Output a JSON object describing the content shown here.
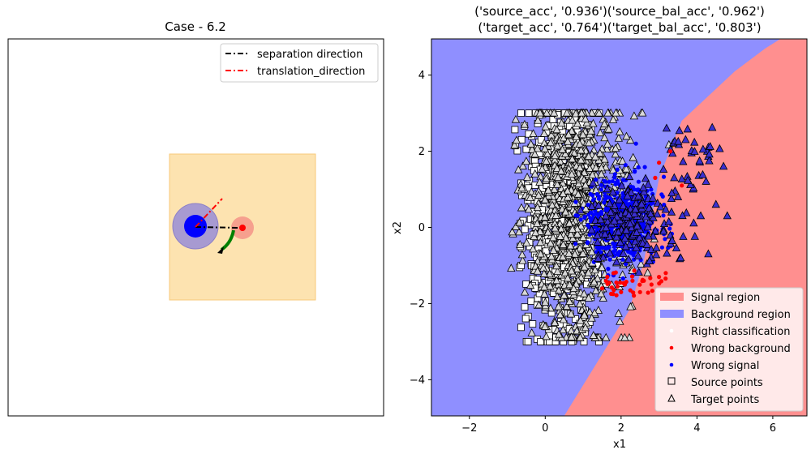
{
  "chart_data": [
    {
      "type": "diagram",
      "title": "Case - 6.2",
      "legend": {
        "placement": "top-right",
        "entries": [
          {
            "label": "separation direction",
            "color": "#000000",
            "style": "dash-dot"
          },
          {
            "label": "translation_direction",
            "color": "#ff0000",
            "style": "dash-dot"
          }
        ]
      },
      "colors": {
        "box_fill": "#fde3b0",
        "box_edge": "#f8c97a",
        "background_halo": "#a79ad1",
        "background_point": "#0000ff",
        "signal_halo": "#f6a08e",
        "signal_point": "#ff0000",
        "rotation_arrow": "#008000"
      }
    },
    {
      "type": "scatter",
      "title_line1": "('source_acc', '0.936')('source_bal_acc', '0.962')",
      "title_line2": "('target_acc', '0.764')('target_bal_acc', '0.803')",
      "xlabel": "x1",
      "ylabel": "x2",
      "xlim": [
        -3,
        6.9
      ],
      "ylim": [
        -4.95,
        4.95
      ],
      "xticks": [
        -2,
        0,
        2,
        4,
        6
      ],
      "yticks": [
        -4,
        -2,
        0,
        2,
        4
      ],
      "tick_labels_x": [
        "−2",
        "0",
        "2",
        "4",
        "6"
      ],
      "tick_labels_y": [
        "−4",
        "−2",
        "0",
        "2",
        "4"
      ],
      "decision_boundary": [
        [
          0.5,
          -4.95
        ],
        [
          2.2,
          -2.2
        ],
        [
          2.6,
          -0.9
        ],
        [
          3.0,
          1.3
        ],
        [
          3.6,
          2.8
        ],
        [
          5.0,
          4.1
        ],
        [
          5.8,
          4.7
        ],
        [
          6.2,
          4.95
        ]
      ],
      "regions": {
        "signal": "Signal region",
        "background": "Background region"
      },
      "colors": {
        "signal_region": "#ff8f8f",
        "background_region": "#8f8fff",
        "wrong_background": "#ff0000",
        "wrong_signal": "#0000ff",
        "marker_edge": "#000000",
        "target_marker_fill": "#d8d8d8"
      },
      "series": [
        {
          "name": "Source points",
          "marker": "square",
          "center": [
            0.4,
            0.3
          ],
          "spread": [
            0.9,
            1.6
          ],
          "x_range": [
            -1,
            1.6
          ],
          "y_range": [
            -3.0,
            3.0
          ]
        },
        {
          "name": "Target points",
          "marker": "triangle",
          "center": [
            0.8,
            0.3
          ],
          "spread": [
            1.0,
            1.5
          ],
          "x_range": [
            -1,
            3.3
          ],
          "y_range": [
            -2.9,
            3.0
          ]
        },
        {
          "name": "Wrong signal",
          "center": [
            2.0,
            0.2
          ],
          "spread": [
            0.45,
            0.55
          ],
          "extra_points": [
            [
              3.4,
              1.3
            ],
            [
              3.9,
              1.0
            ],
            [
              4.5,
              0.6
            ],
            [
              4.8,
              0.3
            ],
            [
              4.3,
              -0.7
            ],
            [
              3.7,
              2.3
            ],
            [
              4.3,
              2.1
            ],
            [
              4.7,
              1.6
            ],
            [
              3.2,
              2.6
            ],
            [
              3.5,
              0.8
            ],
            [
              4.1,
              0.3
            ]
          ]
        },
        {
          "name": "Wrong background",
          "points": [
            [
              1.8,
              -1.2
            ],
            [
              2.1,
              -1.5
            ],
            [
              2.3,
              -1.4
            ],
            [
              2.6,
              -1.4
            ],
            [
              2.8,
              -1.5
            ],
            [
              3.0,
              -1.3
            ],
            [
              2.5,
              -1.7
            ],
            [
              2.0,
              -1.7
            ],
            [
              1.5,
              -1.6
            ],
            [
              3.3,
              2.0
            ],
            [
              3.0,
              1.7
            ],
            [
              2.9,
              1.3
            ],
            [
              3.6,
              1.1
            ]
          ]
        }
      ],
      "legend": {
        "placement": "lower right",
        "entries": [
          {
            "label": "Signal region",
            "kind": "patch",
            "color": "#ff8f8f"
          },
          {
            "label": "Background region",
            "kind": "patch",
            "color": "#8f8fff"
          },
          {
            "label": "Right classification",
            "kind": "dot",
            "color": "#ffffff"
          },
          {
            "label": "Wrong background",
            "kind": "dot",
            "color": "#ff0000"
          },
          {
            "label": "Wrong signal",
            "kind": "dot",
            "color": "#0000ff"
          },
          {
            "label": "Source points",
            "kind": "square",
            "color": "#000000"
          },
          {
            "label": "Target points",
            "kind": "triangle",
            "color": "#000000"
          }
        ]
      }
    }
  ]
}
